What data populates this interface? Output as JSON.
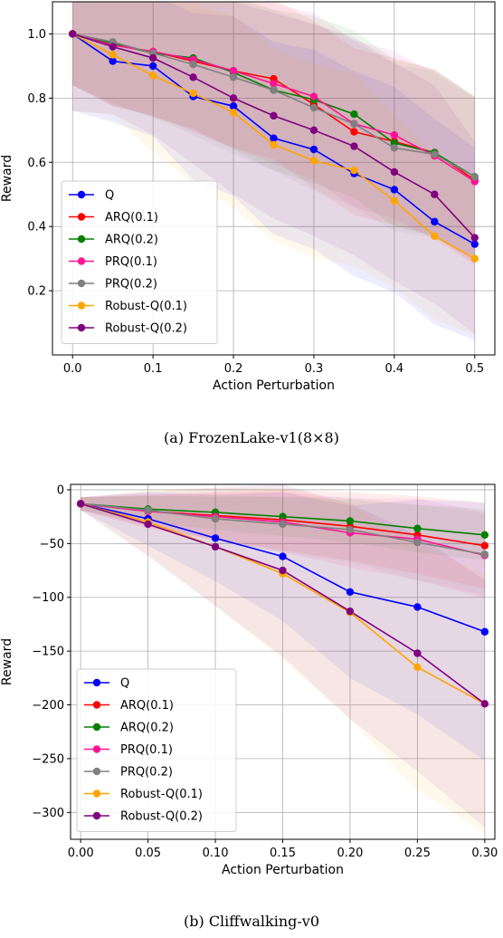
{
  "chart_data": [
    {
      "type": "line",
      "xlabel": "Action Perturbation",
      "ylabel": "Reward",
      "xlim": [
        -0.025,
        0.525
      ],
      "ylim": [
        0.0,
        1.1
      ],
      "xticks": [
        "0.0",
        "0.1",
        "0.2",
        "0.3",
        "0.4",
        "0.5"
      ],
      "xtick_values": [
        0.0,
        0.1,
        0.2,
        0.3,
        0.4,
        0.5
      ],
      "yticks": [
        "0.2",
        "0.4",
        "0.6",
        "0.8",
        "1.0"
      ],
      "ytick_values": [
        0.2,
        0.4,
        0.6,
        0.8,
        1.0
      ],
      "grid": true,
      "legend_position": "lower-left",
      "x": [
        0.0,
        0.05,
        0.1,
        0.15,
        0.2,
        0.25,
        0.3,
        0.35,
        0.4,
        0.45,
        0.5
      ],
      "series": [
        {
          "name": "Q",
          "color": "#0000ff",
          "values": [
            1.0,
            0.915,
            0.9,
            0.805,
            0.775,
            0.675,
            0.64,
            0.565,
            0.515,
            0.415,
            0.345
          ],
          "band": [
            0.24,
            0.19,
            0.22,
            0.26,
            0.28,
            0.3,
            0.31,
            0.32,
            0.32,
            0.32,
            0.3
          ]
        },
        {
          "name": "ARQ(0.1)",
          "color": "#ff0000",
          "values": [
            1.0,
            0.965,
            0.945,
            0.915,
            0.885,
            0.86,
            0.78,
            0.695,
            0.665,
            0.63,
            0.545
          ],
          "band": [
            0.16,
            0.19,
            0.2,
            0.22,
            0.24,
            0.25,
            0.26,
            0.26,
            0.26,
            0.26,
            0.26
          ]
        },
        {
          "name": "ARQ(0.2)",
          "color": "#008000",
          "values": [
            1.0,
            0.97,
            0.94,
            0.925,
            0.88,
            0.825,
            0.795,
            0.75,
            0.66,
            0.63,
            0.555
          ],
          "band": [
            0.16,
            0.19,
            0.2,
            0.22,
            0.24,
            0.25,
            0.26,
            0.26,
            0.26,
            0.26,
            0.25
          ]
        },
        {
          "name": "PRQ(0.1)",
          "color": "#ff1493",
          "values": [
            1.0,
            0.965,
            0.945,
            0.92,
            0.885,
            0.845,
            0.805,
            0.72,
            0.685,
            0.62,
            0.54
          ],
          "band": [
            0.16,
            0.19,
            0.2,
            0.22,
            0.24,
            0.25,
            0.26,
            0.26,
            0.26,
            0.26,
            0.26
          ]
        },
        {
          "name": "PRQ(0.2)",
          "color": "#808080",
          "values": [
            1.0,
            0.975,
            0.94,
            0.905,
            0.865,
            0.825,
            0.77,
            0.72,
            0.645,
            0.625,
            0.555
          ],
          "band": [
            0.16,
            0.19,
            0.2,
            0.22,
            0.24,
            0.25,
            0.26,
            0.26,
            0.26,
            0.26,
            0.25
          ]
        },
        {
          "name": "Robust-Q(0.1)",
          "color": "#ffa500",
          "values": [
            1.0,
            0.935,
            0.87,
            0.815,
            0.755,
            0.655,
            0.605,
            0.575,
            0.48,
            0.37,
            0.3
          ],
          "band": [
            0.24,
            0.19,
            0.24,
            0.28,
            0.3,
            0.3,
            0.3,
            0.3,
            0.27,
            0.26,
            0.24
          ]
        },
        {
          "name": "Robust-Q(0.2)",
          "color": "#800080",
          "values": [
            1.0,
            0.96,
            0.925,
            0.865,
            0.8,
            0.745,
            0.7,
            0.65,
            0.57,
            0.5,
            0.365
          ],
          "band": [
            0.24,
            0.21,
            0.24,
            0.27,
            0.3,
            0.32,
            0.33,
            0.34,
            0.34,
            0.34,
            0.3
          ]
        }
      ]
    },
    {
      "type": "line",
      "xlabel": "Action Perturbation",
      "ylabel": "Reward",
      "xlim": [
        -0.0075,
        0.3075
      ],
      "ylim": [
        -325,
        5
      ],
      "xticks": [
        "0.00",
        "0.05",
        "0.10",
        "0.15",
        "0.20",
        "0.25",
        "0.30"
      ],
      "xtick_values": [
        0.0,
        0.05,
        0.1,
        0.15,
        0.2,
        0.25,
        0.3
      ],
      "yticks": [
        "0",
        "−50",
        "−100",
        "−150",
        "−200",
        "−250",
        "−300"
      ],
      "ytick_values": [
        0,
        -50,
        -100,
        -150,
        -200,
        -250,
        -300
      ],
      "grid": true,
      "legend_position": "lower-left",
      "x": [
        0.0,
        0.05,
        0.1,
        0.15,
        0.2,
        0.25,
        0.3
      ],
      "series": [
        {
          "name": "Q",
          "color": "#0000ff",
          "values": [
            -13,
            -27,
            -45,
            -62,
            -95,
            -109,
            -132
          ],
          "band": [
            6,
            25,
            40,
            60,
            80,
            100,
            120
          ]
        },
        {
          "name": "ARQ(0.1)",
          "color": "#ff0000",
          "values": [
            -13,
            -20,
            -24,
            -28,
            -34,
            -42,
            -52
          ],
          "band": [
            6,
            15,
            22,
            28,
            32,
            36,
            40
          ]
        },
        {
          "name": "ARQ(0.2)",
          "color": "#008000",
          "values": [
            -13,
            -18,
            -21,
            -25,
            -29,
            -36,
            -42
          ],
          "band": [
            6,
            12,
            16,
            18,
            20,
            22,
            24
          ]
        },
        {
          "name": "PRQ(0.1)",
          "color": "#ff1493",
          "values": [
            -13,
            -20,
            -25,
            -30,
            -40,
            -46,
            -61
          ],
          "band": [
            6,
            16,
            22,
            28,
            32,
            38,
            40
          ]
        },
        {
          "name": "PRQ(0.2)",
          "color": "#808080",
          "values": [
            -13,
            -19,
            -27,
            -32,
            -37,
            -49,
            -60
          ],
          "band": [
            6,
            14,
            20,
            26,
            30,
            35,
            38
          ]
        },
        {
          "name": "Robust-Q(0.1)",
          "color": "#ffa500",
          "values": [
            -13,
            -30,
            -53,
            -78,
            -114,
            -165,
            -199
          ],
          "band": [
            6,
            30,
            55,
            80,
            100,
            115,
            120
          ]
        },
        {
          "name": "Robust-Q(0.2)",
          "color": "#800080",
          "values": [
            -13,
            -32,
            -53,
            -75,
            -113,
            -152,
            -199
          ],
          "band": [
            6,
            30,
            55,
            80,
            100,
            110,
            115
          ]
        }
      ]
    }
  ],
  "captions": {
    "a": "(a)  FrozenLake-v1(8×8)",
    "b": "(b)  Cliffwalking-v0"
  }
}
